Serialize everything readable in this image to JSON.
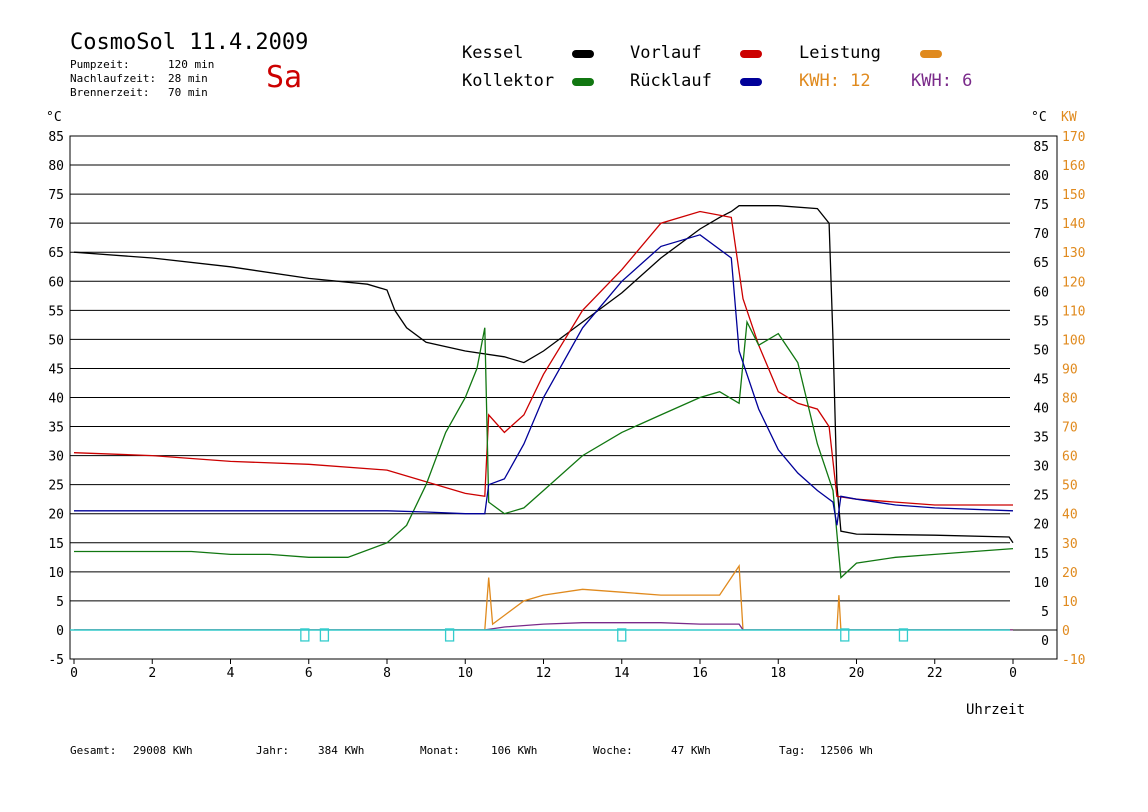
{
  "header": {
    "title": "CosmoSol 11.4.2009",
    "day": "Sa",
    "pumpzeit_label": "Pumpzeit:",
    "pumpzeit_value": "120 min",
    "nachlauf_label": "Nachlaufzeit:",
    "nachlauf_value": "28 min",
    "brenner_label": "Brennerzeit:",
    "brenner_value": "70 min"
  },
  "legend": {
    "kessel": "Kessel",
    "vorlauf": "Vorlauf",
    "leistung": "Leistung",
    "kollektor": "Kollektor",
    "ruecklauf": "Rücklauf",
    "kwh1": "KWH: 12",
    "kwh2": "KWH: 6"
  },
  "footer": {
    "gesamt_label": "Gesamt:",
    "gesamt_value": "29008 KWh",
    "jahr_label": "Jahr:",
    "jahr_value": "384 KWh",
    "monat_label": "Monat:",
    "monat_value": "106 KWh",
    "woche_label": "Woche:",
    "woche_value": "47 KWh",
    "tag_label": "Tag:",
    "tag_value": "12506 Wh"
  },
  "colors": {
    "kessel": "#000000",
    "vorlauf": "#cc0000",
    "kollektor": "#117711",
    "ruecklauf": "#000099",
    "leistung": "#e08a1e",
    "kwh2": "#7a2a8a",
    "pump": "#33cccc"
  },
  "chart_data": {
    "type": "line",
    "xlabel": "Uhrzeit",
    "ylabel_left": "°C",
    "ylabel_right_1": "°C",
    "ylabel_right_2": "KW",
    "xlim": [
      0,
      24
    ],
    "ylim": [
      -5,
      85
    ],
    "y2lim": [
      -10,
      170
    ],
    "xticks": [
      "0",
      "2",
      "4",
      "6",
      "8",
      "10",
      "12",
      "14",
      "16",
      "18",
      "20",
      "22",
      "0"
    ],
    "yticks": [
      "85",
      "80",
      "75",
      "70",
      "65",
      "60",
      "55",
      "50",
      "45",
      "40",
      "35",
      "30",
      "25",
      "20",
      "15",
      "10",
      "5",
      "0",
      "-5"
    ],
    "yticks_right": [
      "85",
      "80",
      "75",
      "70",
      "65",
      "60",
      "55",
      "50",
      "45",
      "40",
      "35",
      "30",
      "25",
      "20",
      "15",
      "10",
      "5",
      "0"
    ],
    "y2ticks": [
      "170",
      "160",
      "150",
      "140",
      "130",
      "120",
      "110",
      "100",
      "90",
      "80",
      "70",
      "60",
      "50",
      "40",
      "30",
      "20",
      "10",
      "0",
      "-10"
    ],
    "grid": true,
    "series": [
      {
        "name": "Kessel",
        "color": "#000000",
        "x": [
          0,
          2,
          4,
          6,
          7.5,
          8,
          8.2,
          8.5,
          9,
          10,
          11,
          11.5,
          12,
          13,
          14,
          15,
          16,
          16.5,
          16.8,
          17,
          18,
          19,
          19.3,
          19.4,
          19.5,
          19.6,
          20,
          22,
          23.9,
          24
        ],
        "y": [
          65,
          64,
          62.5,
          60.5,
          59.5,
          58.5,
          55,
          52,
          49.5,
          48,
          47,
          46,
          48,
          53,
          58,
          64,
          69,
          71,
          72,
          73,
          73,
          72.5,
          70,
          50,
          25,
          17,
          16.5,
          16.3,
          16,
          15
        ]
      },
      {
        "name": "Vorlauf",
        "color": "#cc0000",
        "x": [
          0,
          2,
          4,
          6,
          8,
          9,
          10,
          10.5,
          10.6,
          11,
          11.5,
          12,
          13,
          14,
          15,
          16,
          16.8,
          17.1,
          17.5,
          18,
          18.5,
          19,
          19.3,
          19.5,
          20,
          21,
          22,
          24
        ],
        "y": [
          30.5,
          30,
          29,
          28.5,
          27.5,
          25.5,
          23.5,
          23,
          37,
          34,
          37,
          44,
          55,
          62,
          70,
          72,
          71,
          57,
          49,
          41,
          39,
          38,
          35,
          23,
          22.5,
          22,
          21.5,
          21.5
        ]
      },
      {
        "name": "Kollektor",
        "color": "#117711",
        "x": [
          0,
          1,
          2,
          3,
          4,
          5,
          6,
          7,
          8,
          8.5,
          9,
          9.5,
          10,
          10.3,
          10.5,
          10.6,
          11,
          11.5,
          12,
          13,
          14,
          15,
          16,
          16.5,
          17,
          17.2,
          17.5,
          18,
          18.5,
          19,
          19.4,
          19.6,
          20,
          21,
          22,
          23,
          24
        ],
        "y": [
          13.5,
          13.5,
          13.5,
          13.5,
          13,
          13,
          12.5,
          12.5,
          15,
          18,
          25,
          34,
          40,
          45,
          52,
          22,
          20,
          21,
          24,
          30,
          34,
          37,
          40,
          41,
          39,
          53,
          49,
          51,
          46,
          32,
          24,
          9,
          11.5,
          12.5,
          13,
          13.5,
          14
        ]
      },
      {
        "name": "Rücklauf",
        "color": "#000099",
        "x": [
          0,
          2,
          4,
          6,
          8,
          9,
          10,
          10.5,
          10.6,
          11,
          11.5,
          12,
          13,
          14,
          15,
          16,
          16.8,
          17,
          17.5,
          18,
          18.5,
          19,
          19.4,
          19.5,
          19.6,
          20,
          21,
          22,
          24
        ],
        "y": [
          20.5,
          20.5,
          20.5,
          20.5,
          20.5,
          20.3,
          20,
          20,
          25,
          26,
          32,
          40,
          52,
          60,
          66,
          68,
          64,
          48,
          38,
          31,
          27,
          24,
          22,
          18,
          23,
          22.5,
          21.5,
          21,
          20.5
        ]
      },
      {
        "name": "Leistung",
        "color": "#e08a1e",
        "unit_axis": "KW",
        "x": [
          0,
          10.5,
          10.6,
          10.7,
          11,
          11.5,
          12,
          13,
          14,
          15,
          16,
          16.5,
          17,
          17.1,
          19.5,
          19.55,
          19.6,
          24
        ],
        "y": [
          0,
          0,
          18,
          2,
          5,
          10,
          12,
          14,
          13,
          12,
          12,
          12,
          22,
          0,
          0,
          12,
          0,
          0
        ]
      },
      {
        "name": "KWH: 6",
        "color": "#7a2a8a",
        "unit_axis": "KW",
        "x": [
          0,
          10.5,
          11,
          12,
          13,
          14,
          15,
          16,
          17,
          17.1,
          24
        ],
        "y": [
          0,
          0,
          1,
          2,
          2.5,
          2.5,
          2.5,
          2,
          2,
          0,
          0
        ]
      }
    ],
    "pump_markers_hours": [
      5.9,
      6.4,
      9.6,
      14,
      19.7,
      21.2
    ]
  }
}
